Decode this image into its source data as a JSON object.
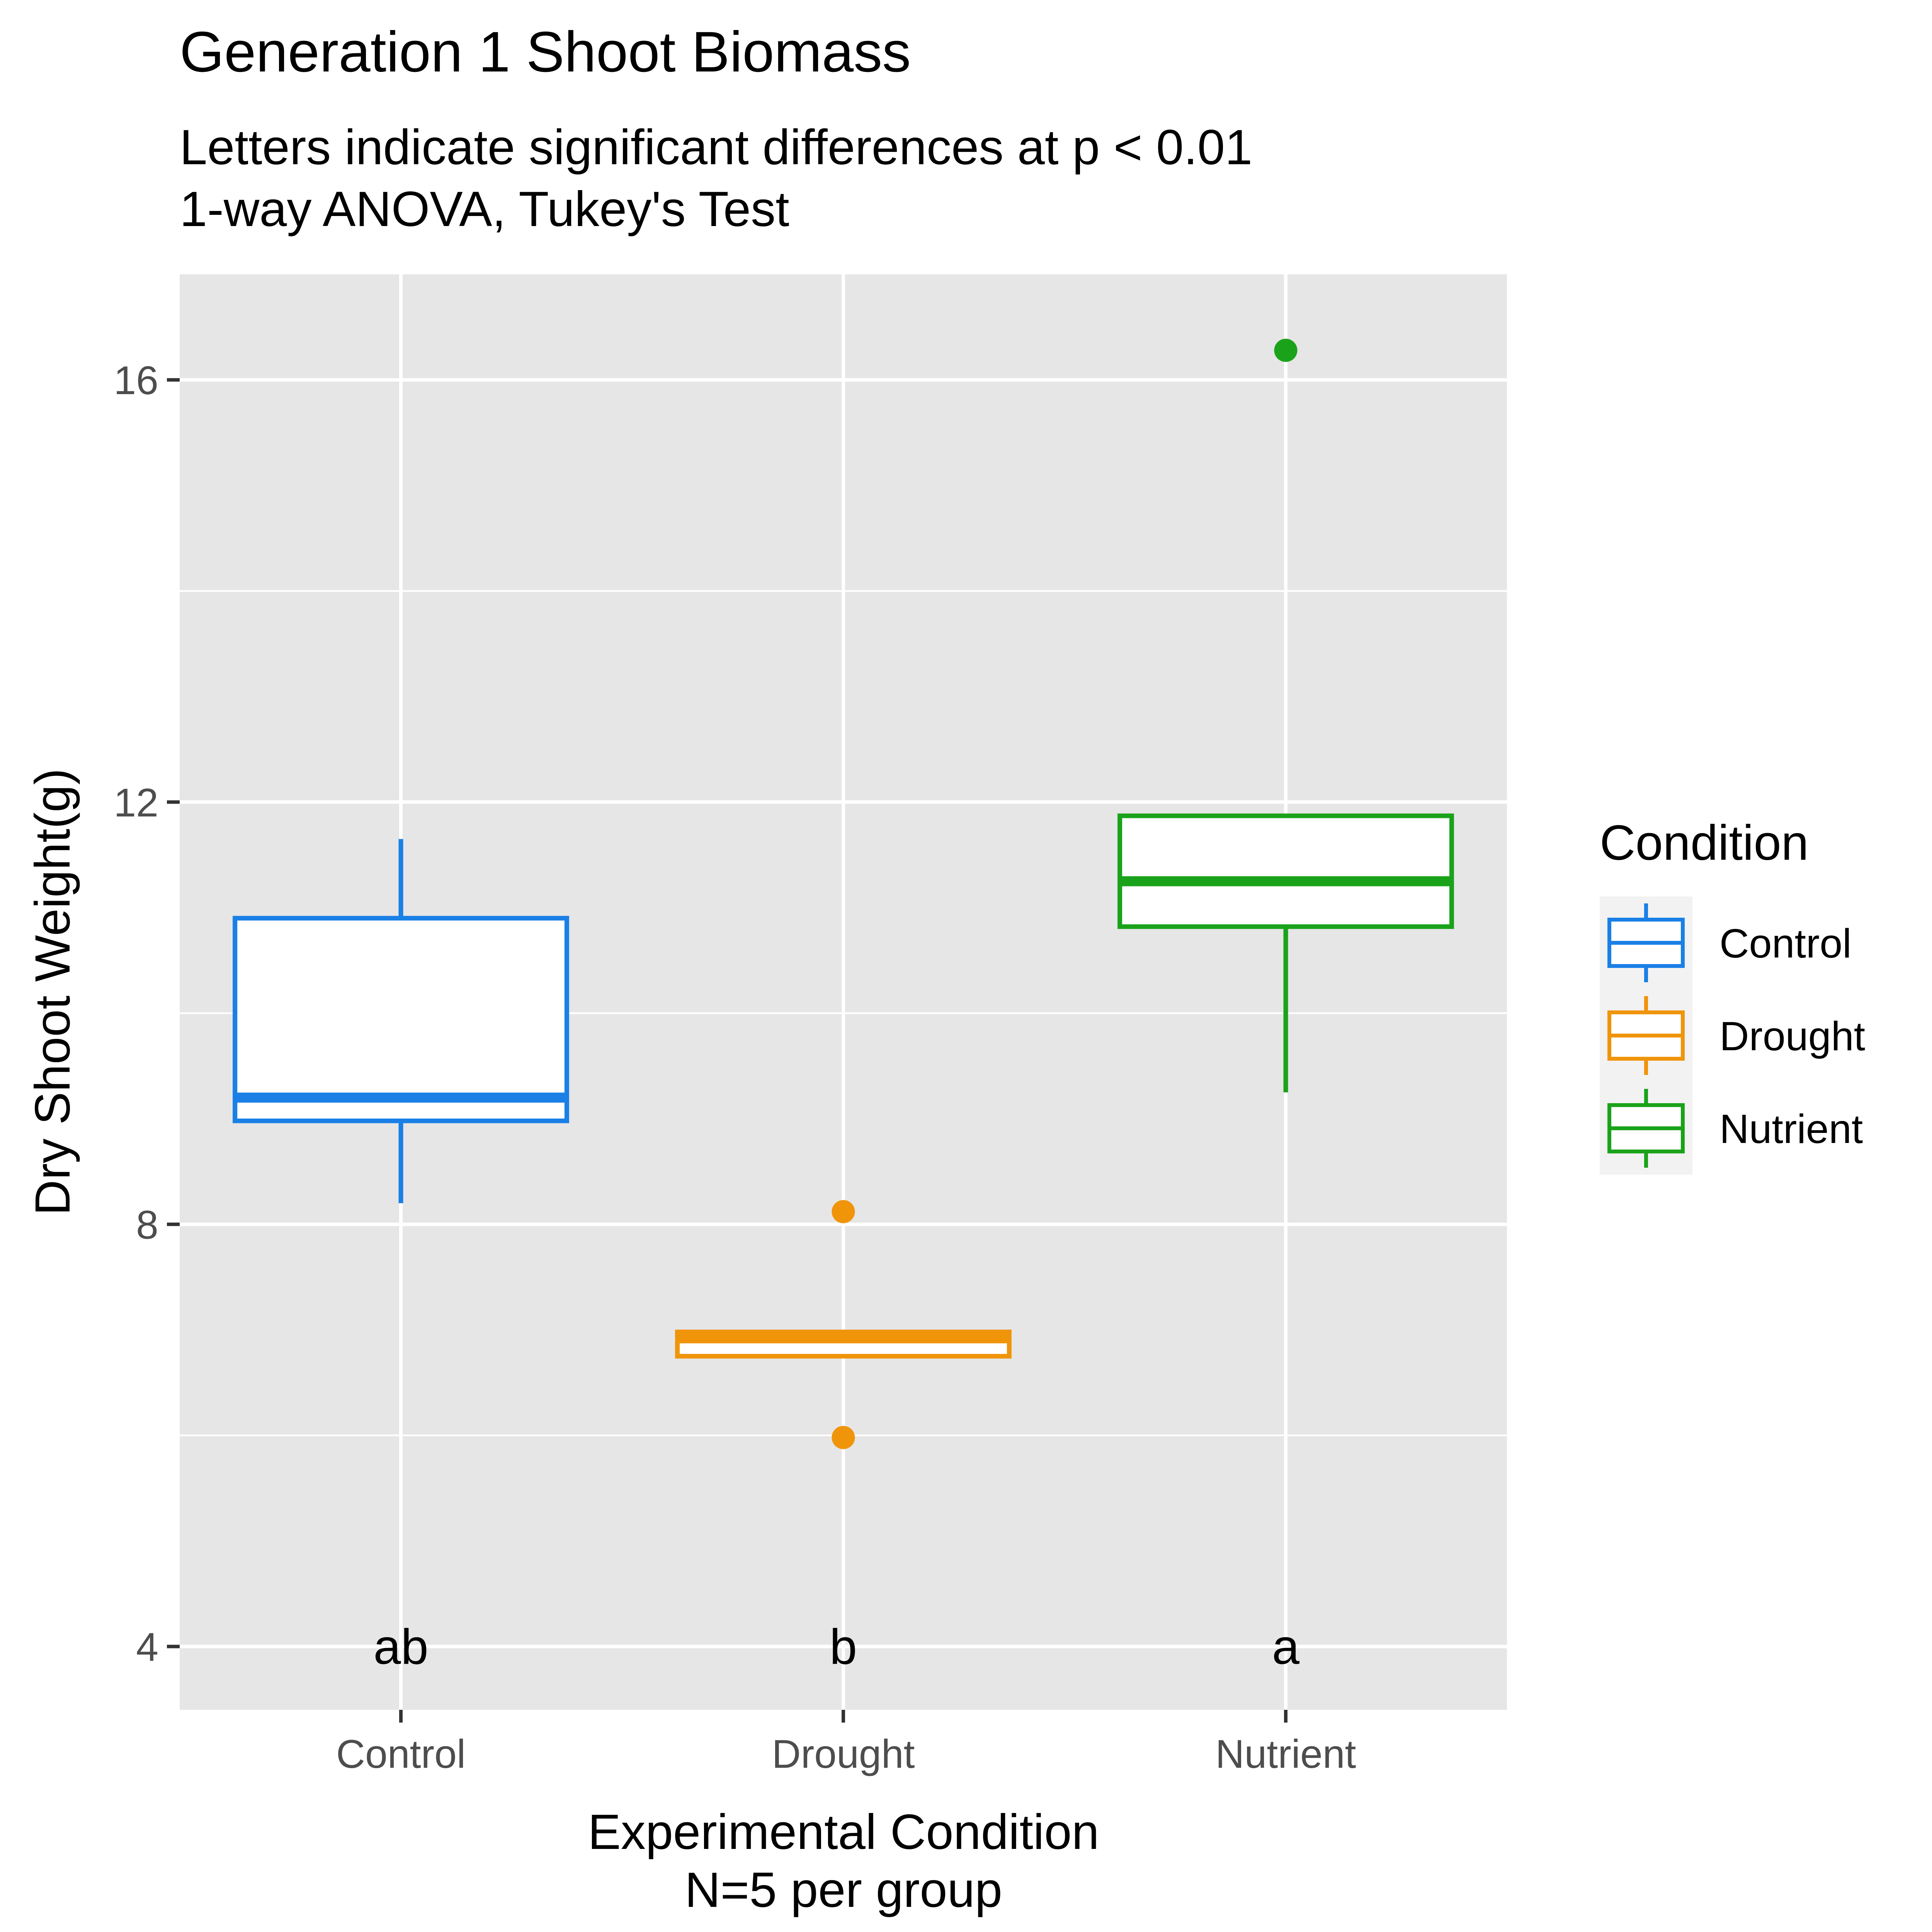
{
  "chart_data": {
    "type": "boxplot",
    "title": "Generation 1 Shoot Biomass",
    "subtitle_lines": [
      "Letters indicate significant differences at p < 0.01",
      "1-way ANOVA, Tukey's Test"
    ],
    "xlabel_lines": [
      "Experimental Condition",
      "N=5 per group"
    ],
    "ylabel": "Dry Shoot Weight(g)",
    "ylim": [
      3.4,
      17.0
    ],
    "yticks": [
      4,
      8,
      12,
      16
    ],
    "grid": true,
    "categories": [
      "Control",
      "Drought",
      "Nutrient"
    ],
    "boxes": [
      {
        "name": "Control",
        "color": "#1a80e6",
        "lower_whisker": 8.2,
        "q1": 8.98,
        "median": 9.2,
        "q3": 10.9,
        "upper_whisker": 11.65,
        "outliers": [],
        "letter": "ab"
      },
      {
        "name": "Drought",
        "color": "#f0940a",
        "lower_whisker": 6.75,
        "q1": 6.75,
        "median": 6.92,
        "q3": 6.98,
        "upper_whisker": 6.98,
        "outliers": [
          8.12,
          5.98
        ],
        "letter": "b"
      },
      {
        "name": "Nutrient",
        "color": "#1aa31a",
        "lower_whisker": 9.25,
        "q1": 10.82,
        "median": 11.25,
        "q3": 11.87,
        "upper_whisker": 11.87,
        "outliers": [
          16.28
        ],
        "letter": "a"
      }
    ],
    "letter_y": 4.0,
    "legend": {
      "title": "Condition",
      "position": "right",
      "entries": [
        "Control",
        "Drought",
        "Nutrient"
      ]
    }
  }
}
